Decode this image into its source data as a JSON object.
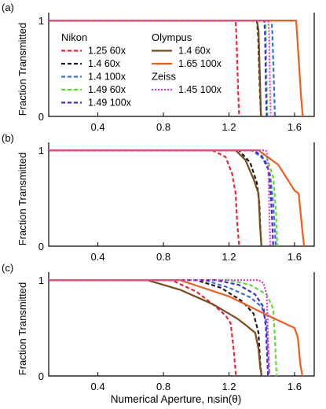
{
  "figure": {
    "xlabel": "Numerical Aperture, nᵢsin(θ)",
    "ylabel": "Fraction Transmitted",
    "xticks": [
      0.4,
      0.8,
      1.2,
      1.6
    ],
    "yticks": [
      0,
      1
    ]
  },
  "legend": {
    "groups": [
      {
        "title": "Nikon",
        "entries": [
          {
            "label": "1.25 60x",
            "color": "#e8283a",
            "dash": "dashed"
          },
          {
            "label": "1.4 60x",
            "color": "#1a1a1a",
            "dash": "dashed"
          },
          {
            "label": "1.4 100x",
            "color": "#3b6fe0",
            "dash": "dashed"
          },
          {
            "label": "1.49 60x",
            "color": "#5ce02e",
            "dash": "dashed"
          },
          {
            "label": "1.49 100x",
            "color": "#3d2fc9",
            "dash": "dashed"
          }
        ]
      },
      {
        "title": "Olympus",
        "entries": [
          {
            "label": "1.4 60x",
            "color": "#7a4a1f",
            "dash": "solid"
          },
          {
            "label": "1.65 100x",
            "color": "#f25c1c",
            "dash": "solid"
          }
        ]
      },
      {
        "title": "Zeiss",
        "entries": [
          {
            "label": "1.45 100x",
            "color": "#e03ad8",
            "dash": "dotted"
          }
        ]
      }
    ]
  },
  "chart_data": [
    {
      "type": "line",
      "panel_label": "(a)",
      "xlim": [
        0.1,
        1.72
      ],
      "ylim": [
        0,
        1.05
      ],
      "series": [
        {
          "name": "Nikon 1.25 60x",
          "color": "#e8283a",
          "dash": "dashed",
          "x": [
            0.1,
            1.24,
            1.245,
            1.255,
            1.262
          ],
          "y": [
            1,
            1,
            0.85,
            0.3,
            0
          ]
        },
        {
          "name": "Nikon 1.4 60x",
          "color": "#1a1a1a",
          "dash": "dashed",
          "x": [
            0.1,
            1.37,
            1.378,
            1.388,
            1.395
          ],
          "y": [
            1,
            1,
            0.85,
            0.3,
            0
          ]
        },
        {
          "name": "Nikon 1.4 100x",
          "color": "#3b6fe0",
          "dash": "dashed",
          "x": [
            0.1,
            1.46,
            1.465,
            1.475,
            1.48
          ],
          "y": [
            1,
            1,
            0.85,
            0.3,
            0
          ]
        },
        {
          "name": "Nikon 1.49 60x",
          "color": "#5ce02e",
          "dash": "dashed",
          "x": [
            0.1,
            1.42,
            1.425,
            1.43,
            1.435
          ],
          "y": [
            1,
            1,
            0.85,
            0.3,
            0
          ]
        },
        {
          "name": "Nikon 1.49 100x",
          "color": "#3d2fc9",
          "dash": "dashed",
          "x": [
            0.1,
            1.415,
            1.42,
            1.425,
            1.43
          ],
          "y": [
            1,
            1,
            0.85,
            0.3,
            0
          ]
        },
        {
          "name": "Olympus 1.4 60x",
          "color": "#7a4a1f",
          "dash": "solid",
          "x": [
            0.1,
            1.37,
            1.38,
            1.39,
            1.395
          ],
          "y": [
            1,
            1,
            0.9,
            0.35,
            0
          ]
        },
        {
          "name": "Olympus 1.65 100x",
          "color": "#f25c1c",
          "dash": "solid",
          "x": [
            0.1,
            1.61,
            1.625,
            1.64,
            1.65
          ],
          "y": [
            1,
            1,
            0.6,
            0.2,
            0
          ]
        },
        {
          "name": "Zeiss 1.45 100x",
          "color": "#e03ad8",
          "dash": "dotted",
          "x": [
            0.1,
            1.44,
            1.445,
            1.45,
            1.455
          ],
          "y": [
            1,
            1,
            0.85,
            0.3,
            0
          ]
        }
      ]
    },
    {
      "type": "line",
      "panel_label": "(b)",
      "xlim": [
        0.1,
        1.72
      ],
      "ylim": [
        0,
        1.05
      ],
      "series": [
        {
          "name": "Nikon 1.25 60x",
          "color": "#e8283a",
          "dash": "dashed",
          "x": [
            0.1,
            1.1,
            1.18,
            1.22,
            1.24,
            1.25,
            1.262
          ],
          "y": [
            1,
            1,
            0.93,
            0.75,
            0.55,
            0.25,
            0
          ]
        },
        {
          "name": "Nikon 1.4 60x",
          "color": "#1a1a1a",
          "dash": "dashed",
          "x": [
            0.1,
            1.26,
            1.33,
            1.37,
            1.385,
            1.392,
            1.398
          ],
          "y": [
            1,
            1,
            0.87,
            0.66,
            0.45,
            0.15,
            0
          ]
        },
        {
          "name": "Nikon 1.4 100x",
          "color": "#3b6fe0",
          "dash": "dashed",
          "x": [
            0.1,
            1.34,
            1.42,
            1.45,
            1.47,
            1.48,
            1.486
          ],
          "y": [
            1,
            1,
            0.9,
            0.75,
            0.45,
            0.15,
            0
          ]
        },
        {
          "name": "Nikon 1.49 60x",
          "color": "#5ce02e",
          "dash": "dashed",
          "x": [
            0.1,
            1.38,
            1.43,
            1.47,
            1.485,
            1.492,
            1.497
          ],
          "y": [
            1,
            1,
            0.93,
            0.72,
            0.4,
            0.12,
            0
          ]
        },
        {
          "name": "Nikon 1.49 100x",
          "color": "#3d2fc9",
          "dash": "dashed",
          "x": [
            0.1,
            1.35,
            1.4,
            1.44,
            1.455,
            1.465,
            1.47
          ],
          "y": [
            1,
            1,
            0.94,
            0.8,
            0.55,
            0.2,
            0
          ]
        },
        {
          "name": "Olympus 1.4 60x",
          "color": "#7a4a1f",
          "dash": "solid",
          "x": [
            0.1,
            1.24,
            1.3,
            1.35,
            1.38,
            1.39,
            1.398
          ],
          "y": [
            1,
            1,
            0.9,
            0.7,
            0.55,
            0.2,
            0
          ]
        },
        {
          "name": "Olympus 1.65 100x",
          "color": "#f25c1c",
          "dash": "solid",
          "x": [
            0.1,
            1.38,
            1.5,
            1.6,
            1.625,
            1.645,
            1.658
          ],
          "y": [
            1,
            1,
            0.85,
            0.58,
            0.55,
            0.2,
            0
          ]
        },
        {
          "name": "Zeiss 1.45 100x",
          "color": "#e03ad8",
          "dash": "dotted",
          "x": [
            0.1,
            1.42,
            1.43,
            1.44,
            1.447,
            1.452
          ],
          "y": [
            1,
            1,
            0.99,
            0.8,
            0.3,
            0
          ]
        }
      ]
    },
    {
      "type": "line",
      "panel_label": "(c)",
      "xlim": [
        0.1,
        1.72
      ],
      "ylim": [
        0,
        1.05
      ],
      "series": [
        {
          "name": "Nikon 1.25 60x",
          "color": "#e8283a",
          "dash": "dashed",
          "x": [
            0.1,
            0.85,
            1.0,
            1.1,
            1.18,
            1.21,
            1.23,
            1.242
          ],
          "y": [
            1,
            1,
            0.88,
            0.75,
            0.63,
            0.55,
            0.25,
            0
          ]
        },
        {
          "name": "Nikon 1.4 60x",
          "color": "#1a1a1a",
          "dash": "dashed",
          "x": [
            0.1,
            1.0,
            1.15,
            1.28,
            1.35,
            1.38,
            1.39,
            1.398
          ],
          "y": [
            1,
            1,
            0.92,
            0.78,
            0.65,
            0.45,
            0.15,
            0
          ]
        },
        {
          "name": "Nikon 1.4 100x",
          "color": "#3b6fe0",
          "dash": "dashed",
          "x": [
            0.1,
            1.05,
            1.2,
            1.33,
            1.4,
            1.43,
            1.44,
            1.447
          ],
          "y": [
            1,
            1,
            0.92,
            0.82,
            0.72,
            0.55,
            0.2,
            0
          ]
        },
        {
          "name": "Nikon 1.49 60x",
          "color": "#5ce02e",
          "dash": "dashed",
          "x": [
            0.1,
            1.2,
            1.33,
            1.43,
            1.47,
            1.48,
            1.487,
            1.492
          ],
          "y": [
            1,
            1,
            0.95,
            0.85,
            0.7,
            0.4,
            0.12,
            0
          ]
        },
        {
          "name": "Nikon 1.49 100x",
          "color": "#3d2fc9",
          "dash": "dashed",
          "x": [
            0.1,
            1.12,
            1.26,
            1.36,
            1.41,
            1.425,
            1.433,
            1.438
          ],
          "y": [
            1,
            1,
            0.95,
            0.85,
            0.72,
            0.5,
            0.2,
            0
          ]
        },
        {
          "name": "Olympus 1.4 60x",
          "color": "#7a4a1f",
          "dash": "solid",
          "x": [
            0.1,
            0.7,
            0.9,
            1.1,
            1.25,
            1.31,
            1.36,
            1.38,
            1.39,
            1.4
          ],
          "y": [
            1,
            1,
            0.9,
            0.75,
            0.6,
            0.52,
            0.45,
            0.28,
            0.1,
            0
          ]
        },
        {
          "name": "Olympus 1.65 100x",
          "color": "#f25c1c",
          "dash": "solid",
          "x": [
            0.1,
            0.9,
            1.2,
            1.45,
            1.6,
            1.62,
            1.635,
            1.648
          ],
          "y": [
            1,
            1,
            0.83,
            0.62,
            0.5,
            0.4,
            0.12,
            0
          ]
        },
        {
          "name": "Zeiss 1.45 100x",
          "color": "#e03ad8",
          "dash": "dotted",
          "x": [
            0.1,
            1.38,
            1.41,
            1.43,
            1.44,
            1.447
          ],
          "y": [
            1,
            1,
            0.97,
            0.85,
            0.3,
            0
          ]
        }
      ]
    }
  ]
}
